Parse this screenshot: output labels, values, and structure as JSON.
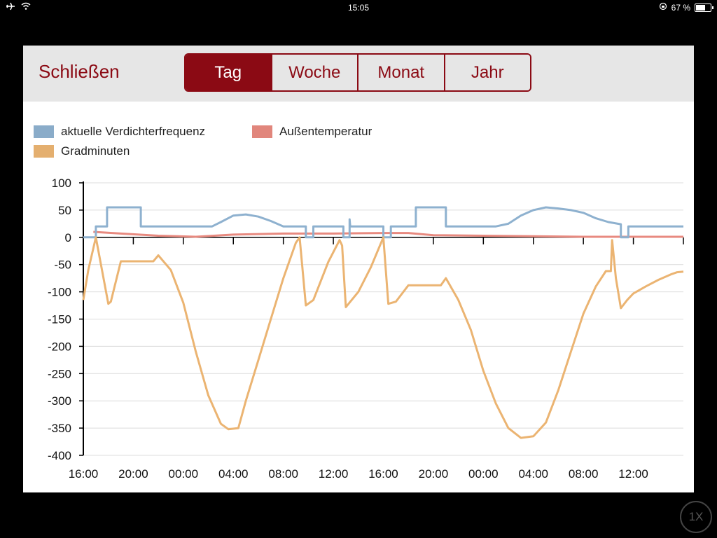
{
  "status_bar": {
    "airplane_icon": "airplane-icon",
    "wifi_icon": "wifi-icon",
    "time": "15:05",
    "battery_percent_text": "67 %",
    "battery_level": 0.67
  },
  "header": {
    "close_label": "Schließen",
    "tabs": [
      {
        "label": "Tag",
        "active": true
      },
      {
        "label": "Woche",
        "active": false
      },
      {
        "label": "Monat",
        "active": false
      },
      {
        "label": "Jahr",
        "active": false
      }
    ]
  },
  "colors": {
    "accent": "#8b0a14",
    "header_bg": "#e6e6e6",
    "compressor": "#8eb1cf",
    "outdoor": "#e88a80",
    "degree_minutes": "#ebb472"
  },
  "overlay": {
    "zoom_label": "1X"
  },
  "chart_data": {
    "type": "line",
    "legend_position": "top-left",
    "grid": true,
    "ylim": [
      -400,
      100
    ],
    "yticks": [
      100,
      50,
      0,
      -50,
      -100,
      -150,
      -200,
      -250,
      -300,
      -350,
      -400
    ],
    "x_unit": "hours since first 16:00 tick",
    "xlim": [
      0,
      48
    ],
    "xticks": [
      {
        "x": 0,
        "label": "16:00"
      },
      {
        "x": 4,
        "label": "20:00"
      },
      {
        "x": 8,
        "label": "00:00"
      },
      {
        "x": 12,
        "label": "04:00"
      },
      {
        "x": 16,
        "label": "08:00"
      },
      {
        "x": 20,
        "label": "12:00"
      },
      {
        "x": 24,
        "label": "16:00"
      },
      {
        "x": 28,
        "label": "20:00"
      },
      {
        "x": 32,
        "label": "00:00"
      },
      {
        "x": 36,
        "label": "04:00"
      },
      {
        "x": 40,
        "label": "08:00"
      },
      {
        "x": 44,
        "label": "12:00"
      }
    ],
    "series": [
      {
        "name": "aktuelle Verdichterfrequenz",
        "color": "#8eb1cf",
        "step": true,
        "points": [
          [
            0,
            0
          ],
          [
            1,
            0
          ],
          [
            1,
            20
          ],
          [
            1.9,
            20
          ],
          [
            1.9,
            55
          ],
          [
            4.6,
            55
          ],
          [
            4.6,
            20
          ],
          [
            10.3,
            20
          ],
          [
            11,
            28
          ],
          [
            12,
            40
          ],
          [
            13,
            42
          ],
          [
            14,
            38
          ],
          [
            15,
            30
          ],
          [
            16,
            20
          ],
          [
            17.8,
            20
          ],
          [
            17.8,
            0
          ],
          [
            18.4,
            0
          ],
          [
            18.4,
            20
          ],
          [
            20.8,
            20
          ],
          [
            20.8,
            0
          ],
          [
            21.3,
            0
          ],
          [
            21.3,
            33
          ],
          [
            21.35,
            20
          ],
          [
            24,
            20
          ],
          [
            24,
            0
          ],
          [
            24.6,
            0
          ],
          [
            24.6,
            20
          ],
          [
            26.6,
            20
          ],
          [
            26.6,
            55
          ],
          [
            29,
            55
          ],
          [
            29,
            20
          ],
          [
            33,
            20
          ],
          [
            34,
            25
          ],
          [
            35,
            40
          ],
          [
            36,
            50
          ],
          [
            37,
            55
          ],
          [
            38,
            53
          ],
          [
            39,
            50
          ],
          [
            40,
            45
          ],
          [
            41,
            35
          ],
          [
            42,
            28
          ],
          [
            43,
            24
          ],
          [
            43,
            0
          ],
          [
            43.6,
            0
          ],
          [
            43.6,
            20
          ],
          [
            48,
            20
          ]
        ]
      },
      {
        "name": "Außentemperatur",
        "color": "#e88a80",
        "step": false,
        "points": [
          [
            0.8,
            10
          ],
          [
            3,
            7
          ],
          [
            6,
            3
          ],
          [
            9,
            1
          ],
          [
            12,
            5
          ],
          [
            16,
            7
          ],
          [
            20,
            7
          ],
          [
            24,
            8
          ],
          [
            26,
            8
          ],
          [
            28,
            4
          ],
          [
            32,
            3
          ],
          [
            36,
            2
          ],
          [
            40,
            1
          ],
          [
            44,
            1
          ],
          [
            48,
            1
          ]
        ]
      },
      {
        "name": "Gradminuten",
        "color": "#ebb472",
        "step": false,
        "points": [
          [
            0,
            -115
          ],
          [
            0.4,
            -60
          ],
          [
            1,
            0
          ],
          [
            2,
            -122
          ],
          [
            2.2,
            -118
          ],
          [
            3,
            -44
          ],
          [
            5.6,
            -44
          ],
          [
            6,
            -33
          ],
          [
            7,
            -60
          ],
          [
            8,
            -120
          ],
          [
            9,
            -210
          ],
          [
            10,
            -290
          ],
          [
            11,
            -342
          ],
          [
            11.6,
            -352
          ],
          [
            12.4,
            -350
          ],
          [
            13,
            -300
          ],
          [
            14,
            -225
          ],
          [
            15,
            -150
          ],
          [
            16,
            -75
          ],
          [
            17,
            -10
          ],
          [
            17.3,
            0
          ],
          [
            17.8,
            -125
          ],
          [
            18.4,
            -115
          ],
          [
            19.6,
            -45
          ],
          [
            20.5,
            -5
          ],
          [
            20.7,
            -15
          ],
          [
            21,
            -128
          ],
          [
            22,
            -100
          ],
          [
            23,
            -55
          ],
          [
            24,
            0
          ],
          [
            24.4,
            -122
          ],
          [
            25,
            -118
          ],
          [
            26,
            -88
          ],
          [
            28.6,
            -88
          ],
          [
            29,
            -75
          ],
          [
            30,
            -115
          ],
          [
            31,
            -170
          ],
          [
            32,
            -245
          ],
          [
            33,
            -305
          ],
          [
            34,
            -350
          ],
          [
            35,
            -368
          ],
          [
            36,
            -365
          ],
          [
            37,
            -340
          ],
          [
            38,
            -280
          ],
          [
            39,
            -210
          ],
          [
            40,
            -140
          ],
          [
            41,
            -90
          ],
          [
            41.8,
            -62
          ],
          [
            42.2,
            -62
          ],
          [
            42.3,
            -5
          ],
          [
            42.6,
            -75
          ],
          [
            43,
            -130
          ],
          [
            43.5,
            -115
          ],
          [
            44,
            -103
          ],
          [
            45,
            -90
          ],
          [
            46,
            -78
          ],
          [
            47,
            -68
          ],
          [
            47.5,
            -64
          ],
          [
            48,
            -63
          ]
        ]
      }
    ]
  }
}
